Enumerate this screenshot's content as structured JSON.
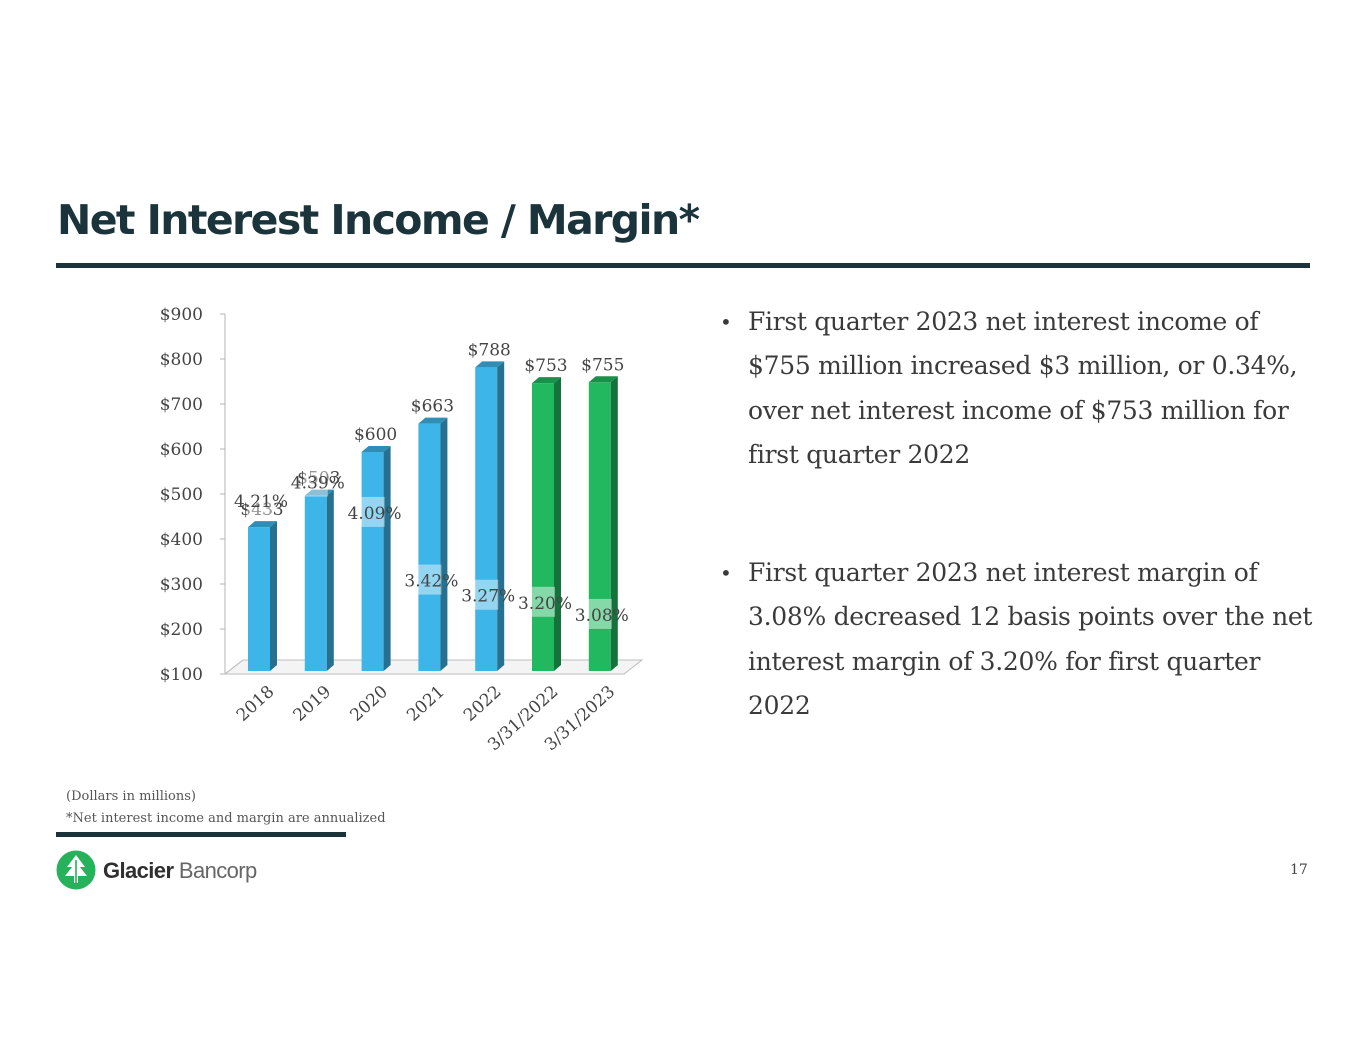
{
  "slide": {
    "title": "Net Interest Income / Margin*",
    "page_number": "17"
  },
  "bullets": [
    "First quarter 2023 net interest income of $755 million increased $3 million, or 0.34%, over net interest income of $753 million for first quarter 2022",
    "First quarter 2023 net interest margin of 3.08% decreased 12 basis points over the net interest margin of 3.20% for first quarter 2022"
  ],
  "footnotes": {
    "units": "(Dollars in millions)",
    "note": "*Net interest income and margin are annualized"
  },
  "logo": {
    "brand_bold": "Glacier",
    "brand_light": "Bancorp",
    "icon": "tree-icon",
    "color": "#27b15b"
  },
  "chart_data": {
    "type": "bar",
    "categories": [
      "2018",
      "2019",
      "2020",
      "2021",
      "2022",
      "3/31/2022",
      "3/31/2023"
    ],
    "series": [
      {
        "values": [
          433,
          503,
          600,
          663,
          788,
          753,
          755
        ],
        "value_labels": [
          "$433",
          "$503",
          "$600",
          "$663",
          "$788",
          "$753",
          "$755"
        ],
        "margin_labels": [
          "4.21%",
          "4.39%",
          "4.09%",
          "3.42%",
          "3.27%",
          "3.20%",
          "3.08%"
        ],
        "colors": [
          "#3db5e8",
          "#3db5e8",
          "#3db5e8",
          "#3db5e8",
          "#3db5e8",
          "#22b860",
          "#22b860"
        ]
      }
    ],
    "margins": [
      4.21,
      4.39,
      4.09,
      3.42,
      3.27,
      3.2,
      3.08
    ],
    "ylim": [
      100,
      900
    ],
    "yticks": [
      100,
      200,
      300,
      400,
      500,
      600,
      700,
      800,
      900
    ],
    "ytick_labels": [
      "$100",
      "$200",
      "$300",
      "$400",
      "$500",
      "$600",
      "$700",
      "$800",
      "$900"
    ],
    "grid": false,
    "legend": "none",
    "title": "",
    "xlabel": "",
    "ylabel": ""
  }
}
